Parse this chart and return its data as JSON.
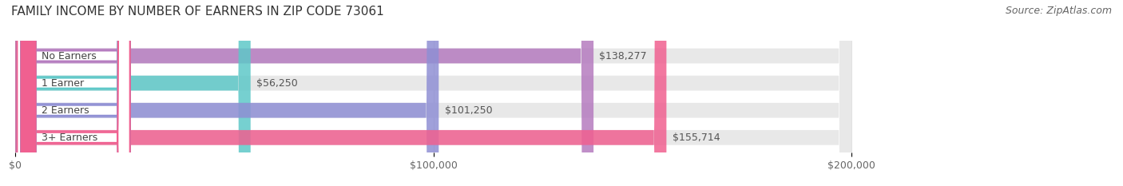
{
  "title": "FAMILY INCOME BY NUMBER OF EARNERS IN ZIP CODE 73061",
  "source": "Source: ZipAtlas.com",
  "categories": [
    "No Earners",
    "1 Earner",
    "2 Earners",
    "3+ Earners"
  ],
  "values": [
    138277,
    56250,
    101250,
    155714
  ],
  "bar_colors": [
    "#b57bbf",
    "#5ec8c8",
    "#8f8fd4",
    "#f06090"
  ],
  "bar_bg_color": "#e8e8e8",
  "value_labels": [
    "$138,277",
    "$56,250",
    "$101,250",
    "$155,714"
  ],
  "xlim": [
    0,
    200000
  ],
  "xticks": [
    0,
    100000,
    200000
  ],
  "xtick_labels": [
    "$0",
    "$100,000",
    "$200,000"
  ],
  "bg_color": "#ffffff",
  "title_fontsize": 11,
  "source_fontsize": 9,
  "bar_label_fontsize": 9,
  "value_fontsize": 9,
  "tick_fontsize": 9,
  "figwidth": 14.06,
  "figheight": 2.33,
  "pill_rounding": 3000,
  "bar_rounding": 3000
}
